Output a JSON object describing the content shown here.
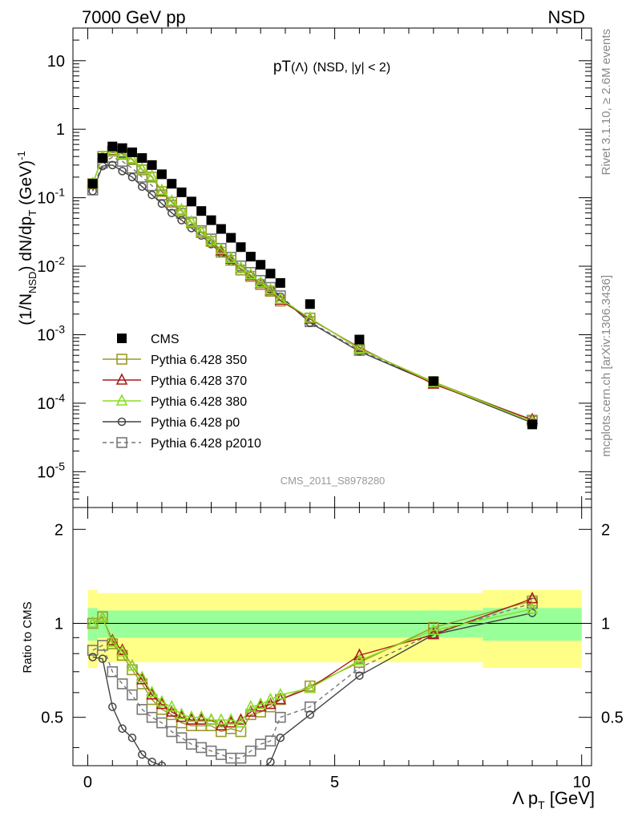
{
  "header": {
    "left": "7000 GeV pp",
    "right": "NSD"
  },
  "side_labels": {
    "rivet": "Rivet 3.1.10, ≥ 2.6M events",
    "mcplots": "mcplots.cern.ch [arXiv:1306.3436]"
  },
  "chart_data": {
    "type": "scatter",
    "title": "pT(Λ) (NSD, |y| < 2)",
    "title_main": "pT",
    "title_particle": "(Λ)",
    "title_cut": "(NSD, |y| < 2)",
    "analysis": "CMS_2011_S8978280",
    "xlabel": "Λ p_T [GeV]",
    "ylabel": "(1/N_NSD) dN/dp_T (GeV)^-1",
    "ratio_ylabel": "Ratio to CMS",
    "xlim": [
      -0.3,
      10.2
    ],
    "ylim": [
      3e-06,
      30
    ],
    "yscale": "log",
    "ratio_ylim": [
      0.35,
      2.35
    ],
    "x_ticks": [
      0,
      5,
      10
    ],
    "x_tick_labels": [
      "0",
      "5",
      "10"
    ],
    "y_tick_labels": [
      "10",
      "1",
      "10^-1",
      "10^-2",
      "10^-3",
      "10^-4",
      "10^-5"
    ],
    "ratio_tick_labels": [
      "2",
      "1",
      "0.5"
    ],
    "legend_position": "lower-left",
    "x": [
      0.1,
      0.3,
      0.5,
      0.7,
      0.9,
      1.1,
      1.3,
      1.5,
      1.7,
      1.9,
      2.1,
      2.3,
      2.5,
      2.7,
      2.9,
      3.1,
      3.3,
      3.5,
      3.7,
      3.9,
      4.5,
      5.5,
      7.0,
      9.0
    ],
    "series": [
      {
        "name": "CMS",
        "color": "#000000",
        "marker": "filled-square",
        "values": [
          0.16,
          0.38,
          0.56,
          0.53,
          0.46,
          0.38,
          0.3,
          0.22,
          0.16,
          0.12,
          0.088,
          0.064,
          0.047,
          0.035,
          0.026,
          0.019,
          0.0138,
          0.0105,
          0.0078,
          0.0057,
          0.0028,
          0.00085,
          0.00021,
          4.9e-05
        ]
      },
      {
        "name": "Pythia 6.428 350",
        "color": "#9a9a2a",
        "marker": "open-square",
        "dashed": false,
        "values": [
          0.16,
          0.4,
          0.48,
          0.43,
          0.36,
          0.255,
          0.2,
          0.123,
          0.086,
          0.064,
          0.043,
          0.031,
          0.023,
          0.016,
          0.0122,
          0.0088,
          0.0071,
          0.0054,
          0.0043,
          0.0031,
          0.00175,
          0.00062,
          0.000205,
          5.65e-05
        ]
      },
      {
        "name": "Pythia 6.428 370",
        "color": "#aa1a1a",
        "marker": "open-triangle",
        "dashed": false,
        "values": [
          0.16,
          0.39,
          0.49,
          0.44,
          0.37,
          0.26,
          0.205,
          0.125,
          0.088,
          0.066,
          0.044,
          0.032,
          0.0238,
          0.0168,
          0.0127,
          0.0093,
          0.0073,
          0.0056,
          0.0044,
          0.0032,
          0.0017,
          0.00065,
          0.00019,
          5.75e-05
        ]
      },
      {
        "name": "Pythia 6.428 380",
        "color": "#88dd22",
        "marker": "open-triangle",
        "dashed": false,
        "values": [
          0.16,
          0.39,
          0.48,
          0.43,
          0.37,
          0.26,
          0.205,
          0.128,
          0.089,
          0.066,
          0.044,
          0.032,
          0.0238,
          0.0175,
          0.013,
          0.0094,
          0.0075,
          0.0057,
          0.0045,
          0.0033,
          0.00175,
          0.00063,
          0.0002,
          5.4e-05
        ]
      },
      {
        "name": "Pythia 6.428 p0",
        "color": "#444444",
        "marker": "open-circle",
        "dashed": false,
        "values": [
          0.125,
          0.29,
          0.3,
          0.245,
          0.2,
          0.145,
          0.11,
          0.082,
          0.06,
          0.047,
          0.036,
          0.028,
          0.021,
          0.0155,
          0.0118,
          0.0091,
          0.0073,
          0.0058,
          0.0046,
          0.0036,
          0.0015,
          0.00057,
          0.000195,
          5.15e-05
        ]
      },
      {
        "name": "Pythia 6.428 p2010",
        "color": "#777777",
        "marker": "open-square",
        "dashed": true,
        "values": [
          0.13,
          0.32,
          0.39,
          0.34,
          0.27,
          0.2,
          0.15,
          0.11,
          0.078,
          0.059,
          0.044,
          0.033,
          0.025,
          0.0182,
          0.0135,
          0.0101,
          0.0081,
          0.0062,
          0.0049,
          0.0037,
          0.00155,
          0.00059,
          0.0002,
          5.5e-05
        ]
      }
    ],
    "ratio_series": [
      {
        "name": "Pythia 6.428 350",
        "values": [
          1.0,
          1.05,
          0.86,
          0.79,
          0.71,
          0.64,
          0.57,
          0.53,
          0.51,
          0.48,
          0.47,
          0.47,
          0.47,
          0.45,
          0.46,
          0.45,
          0.51,
          0.52,
          0.54,
          0.57,
          0.63,
          0.75,
          0.97,
          1.18
        ]
      },
      {
        "name": "Pythia 6.428 370",
        "values": [
          1.0,
          1.04,
          0.88,
          0.82,
          0.73,
          0.66,
          0.59,
          0.55,
          0.52,
          0.5,
          0.49,
          0.49,
          0.49,
          0.47,
          0.48,
          0.49,
          0.52,
          0.54,
          0.55,
          0.57,
          0.62,
          0.79,
          0.92,
          1.2
        ]
      },
      {
        "name": "Pythia 6.428 380",
        "values": [
          1.0,
          1.04,
          0.87,
          0.81,
          0.73,
          0.67,
          0.6,
          0.56,
          0.54,
          0.51,
          0.5,
          0.5,
          0.49,
          0.49,
          0.49,
          0.48,
          0.54,
          0.55,
          0.57,
          0.59,
          0.62,
          0.76,
          0.95,
          1.11
        ]
      },
      {
        "name": "Pythia 6.428 p0",
        "values": [
          0.78,
          0.77,
          0.54,
          0.46,
          0.43,
          0.38,
          0.36,
          0.35,
          0.33,
          0.33,
          0.33,
          0.33,
          0.33,
          0.33,
          0.33,
          0.33,
          0.33,
          0.34,
          0.36,
          0.43,
          0.51,
          0.68,
          0.92,
          1.08
        ]
      },
      {
        "name": "Pythia 6.428 p2010",
        "values": [
          0.82,
          0.85,
          0.7,
          0.64,
          0.59,
          0.53,
          0.5,
          0.48,
          0.45,
          0.43,
          0.41,
          0.4,
          0.39,
          0.38,
          0.37,
          0.37,
          0.39,
          0.41,
          0.42,
          0.5,
          0.54,
          0.72,
          0.93,
          1.16
        ]
      }
    ],
    "uncertainty_bands": {
      "x_edges": [
        0.0,
        0.2,
        8.0,
        10.0
      ],
      "inner_half_width": [
        0.12,
        0.1,
        0.12
      ],
      "outer_half_width": [
        0.28,
        0.25,
        0.28
      ],
      "inner_color": "#99ff99",
      "outer_color": "#ffff88"
    }
  }
}
